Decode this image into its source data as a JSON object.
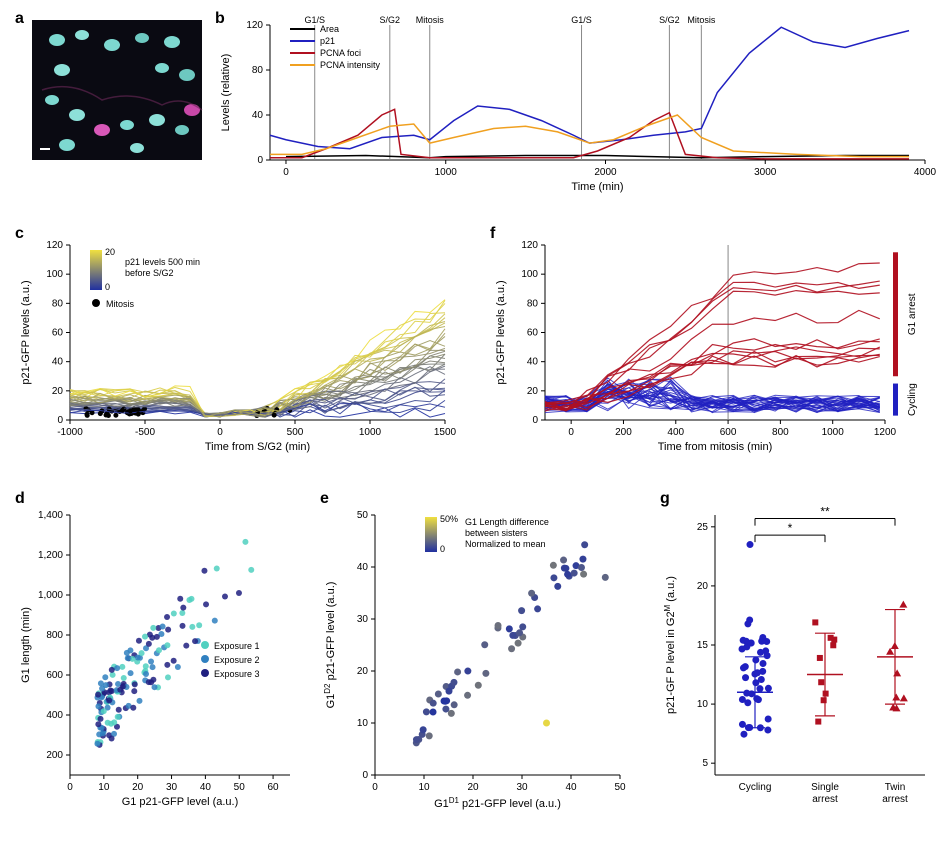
{
  "panels": {
    "a": {
      "label": "a"
    },
    "b": {
      "label": "b",
      "legend": [
        "Area",
        "p21",
        "PCNA foci",
        "PCNA intensity"
      ],
      "legend_colors": [
        "#000000",
        "#2020c0",
        "#b01020",
        "#f0a020"
      ],
      "events": [
        "G1/S",
        "S/G2",
        "Mitosis",
        "G1/S",
        "S/G2",
        "Mitosis"
      ],
      "event_times": [
        180,
        650,
        900,
        1850,
        2400,
        2600
      ],
      "xlabel": "Time (min)",
      "ylabel": "Levels (relative)",
      "xlim": [
        -100,
        4000
      ],
      "ylim": [
        0,
        120
      ],
      "xticks": [
        0,
        1000,
        2000,
        3000,
        4000
      ],
      "yticks": [
        0,
        40,
        80,
        120
      ],
      "series": {
        "area": {
          "color": "#000000",
          "values": [
            [
              0,
              3
            ],
            [
              500,
              4
            ],
            [
              900,
              2
            ],
            [
              1000,
              3
            ],
            [
              1500,
              4
            ],
            [
              2000,
              4
            ],
            [
              2600,
              2
            ],
            [
              3000,
              3
            ],
            [
              3500,
              4
            ],
            [
              3900,
              4
            ]
          ]
        },
        "p21": {
          "color": "#2020c0",
          "values": [
            [
              -100,
              22
            ],
            [
              0,
              18
            ],
            [
              200,
              12
            ],
            [
              400,
              10
            ],
            [
              600,
              20
            ],
            [
              800,
              22
            ],
            [
              900,
              18
            ],
            [
              1050,
              35
            ],
            [
              1200,
              48
            ],
            [
              1400,
              45
            ],
            [
              1600,
              35
            ],
            [
              1800,
              22
            ],
            [
              1900,
              15
            ],
            [
              2100,
              18
            ],
            [
              2300,
              22
            ],
            [
              2500,
              25
            ],
            [
              2600,
              28
            ],
            [
              2700,
              60
            ],
            [
              2900,
              95
            ],
            [
              3100,
              118
            ],
            [
              3300,
              105
            ],
            [
              3500,
              100
            ],
            [
              3700,
              108
            ],
            [
              3900,
              115
            ]
          ]
        },
        "foci": {
          "color": "#b01020",
          "values": [
            [
              -100,
              2
            ],
            [
              100,
              2
            ],
            [
              250,
              10
            ],
            [
              450,
              22
            ],
            [
              600,
              40
            ],
            [
              680,
              45
            ],
            [
              720,
              5
            ],
            [
              900,
              2
            ],
            [
              1200,
              2
            ],
            [
              1800,
              2
            ],
            [
              1950,
              8
            ],
            [
              2150,
              20
            ],
            [
              2300,
              35
            ],
            [
              2400,
              42
            ],
            [
              2500,
              5
            ],
            [
              2700,
              2
            ],
            [
              3000,
              1
            ],
            [
              3900,
              1
            ]
          ]
        },
        "intensity": {
          "color": "#f0a020",
          "values": [
            [
              -100,
              5
            ],
            [
              100,
              5
            ],
            [
              250,
              10
            ],
            [
              450,
              20
            ],
            [
              650,
              30
            ],
            [
              800,
              32
            ],
            [
              900,
              15
            ],
            [
              1050,
              20
            ],
            [
              1300,
              28
            ],
            [
              1500,
              30
            ],
            [
              1700,
              25
            ],
            [
              1900,
              15
            ],
            [
              2050,
              18
            ],
            [
              2250,
              30
            ],
            [
              2450,
              40
            ],
            [
              2600,
              20
            ],
            [
              2800,
              8
            ],
            [
              3200,
              5
            ],
            [
              3600,
              3
            ],
            [
              3900,
              3
            ]
          ]
        }
      }
    },
    "c": {
      "label": "c",
      "xlabel": "Time from S/G2 (min)",
      "ylabel": "p21-GFP levels (a.u.)",
      "xlim": [
        -1000,
        1500
      ],
      "ylim": [
        0,
        120
      ],
      "xticks": [
        -1000,
        -500,
        0,
        500,
        1000,
        1500
      ],
      "yticks": [
        0,
        20,
        40,
        60,
        80,
        100,
        120
      ],
      "colorbar_title": "p21 levels 500 min before S/G2",
      "colorbar_range": [
        0,
        20
      ],
      "mitosis_label": "Mitosis",
      "gradient_low": "#2030a0",
      "gradient_high": "#f0e040"
    },
    "d": {
      "label": "d",
      "xlabel": "G1 p21-GFP level (a.u.)",
      "ylabel": "G1 length (min)",
      "xlim": [
        0,
        65
      ],
      "ylim": [
        100,
        1400
      ],
      "xticks": [
        0,
        10,
        20,
        30,
        40,
        50,
        60
      ],
      "yticks": [
        200,
        400,
        600,
        800,
        1000,
        1200,
        1400
      ],
      "legend": [
        "Exposure 1",
        "Exposure 2",
        "Exposure 3"
      ],
      "legend_colors": [
        "#50d0c0",
        "#3080c0",
        "#202080"
      ]
    },
    "e": {
      "label": "e",
      "xlabel": "G1^D1 p21-GFP level (a.u.)",
      "ylabel": "G1^D2 p21-GFP level (a.u.)",
      "xlim": [
        0,
        50
      ],
      "ylim": [
        0,
        50
      ],
      "xticks": [
        0,
        10,
        20,
        30,
        40,
        50
      ],
      "yticks": [
        0,
        10,
        20,
        30,
        40,
        50
      ],
      "colorbar_title": "G1 Length difference between sisters Normalized to mean",
      "colorbar_range": [
        "0",
        "50%"
      ],
      "gradient_low": "#2030a0",
      "gradient_high": "#f0e040"
    },
    "f": {
      "label": "f",
      "xlabel": "Time from mitosis (min)",
      "ylabel": "p21-GFP levels (a.u.)",
      "xlim": [
        -100,
        1200
      ],
      "ylim": [
        0,
        120
      ],
      "xticks": [
        0,
        200,
        400,
        600,
        800,
        1000,
        1200
      ],
      "yticks": [
        0,
        20,
        40,
        60,
        80,
        100,
        120
      ],
      "cycling_color": "#2020c0",
      "arrest_color": "#b01020",
      "labels": [
        "G1 arrest",
        "Cycling"
      ],
      "vline": 600
    },
    "g": {
      "label": "g",
      "xlabel_cats": [
        "Cycling",
        "Single arrest",
        "Twin arrest"
      ],
      "ylabel": "p21-GF P level in G2^M (a.u.)",
      "ylim": [
        4,
        26
      ],
      "yticks": [
        5,
        10,
        15,
        20,
        25
      ],
      "cycling_color": "#2020c0",
      "arrest_color": "#b01020",
      "sig": [
        "*",
        "**"
      ]
    }
  }
}
